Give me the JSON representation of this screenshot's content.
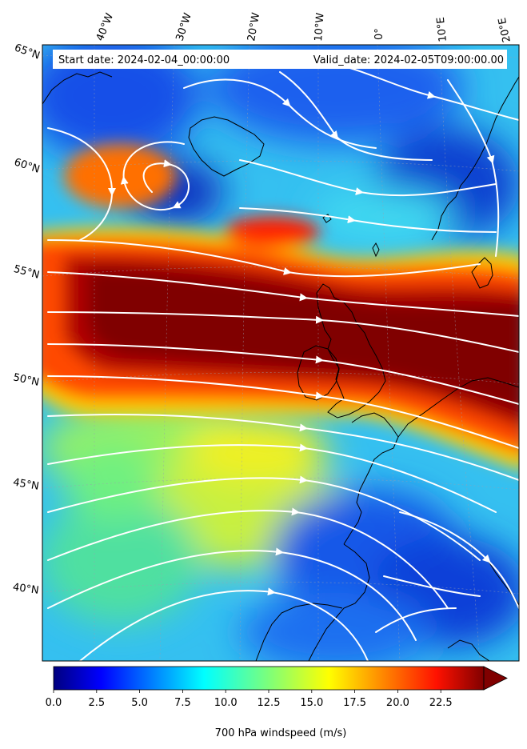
{
  "map": {
    "start_label": "Start date: 2024-02-04_00:00:00",
    "valid_label": "Valid_date: 2024-02-05T09:00:00.00",
    "longitude_labels": [
      "40°W",
      "30°W",
      "20°W",
      "10°W",
      "0°",
      "10°E",
      "20°E"
    ],
    "latitude_labels": [
      "65°N",
      "60°N",
      "55°N",
      "50°N",
      "45°N",
      "40°N"
    ],
    "colorbar": {
      "ticks": [
        "0.0",
        "2.5",
        "5.0",
        "7.5",
        "10.0",
        "12.5",
        "15.0",
        "17.5",
        "20.0",
        "22.5"
      ],
      "label": "700 hPa windspeed (m/s)",
      "colormap": "jet",
      "range": [
        0,
        25
      ],
      "extend": "max"
    },
    "colors": {
      "jet_core": "#800000",
      "low_wind": "#0000b0",
      "streamlines": "#ffffff",
      "coastline": "#000000"
    }
  }
}
